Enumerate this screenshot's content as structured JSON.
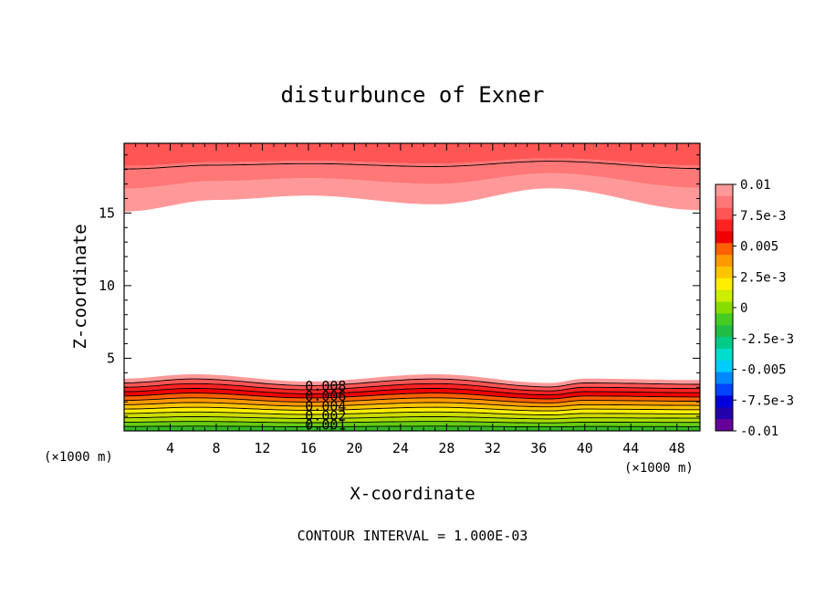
{
  "chart_data": {
    "type": "contour",
    "title": "disturbunce of Exner",
    "xlabel": "X-coordinate",
    "ylabel": "Z-coordinate",
    "x_unit": "(×1000 m)",
    "y_unit": "(×1000 m)",
    "xlim": [
      0,
      50
    ],
    "ylim": [
      0,
      19.8
    ],
    "x_ticks": [
      "4",
      "8",
      "12",
      "16",
      "20",
      "24",
      "28",
      "32",
      "36",
      "40",
      "44",
      "48"
    ],
    "x_tick_values": [
      4,
      8,
      12,
      16,
      20,
      24,
      28,
      32,
      36,
      40,
      44,
      48
    ],
    "y_ticks": [
      "5",
      "10",
      "15"
    ],
    "y_tick_values": [
      5,
      10,
      15
    ],
    "footer": "CONTOUR INTERVAL = 1.000E-03",
    "contour_interval": 0.001,
    "contour_labels": [
      "0.008",
      "0.006",
      "0.004",
      "0.002",
      "0.001"
    ],
    "contour_label_values": [
      0.008,
      0.006,
      0.004,
      0.002,
      0.001
    ],
    "bottom_layer": {
      "description_values": [
        0.001,
        0.002,
        0.003,
        0.004,
        0.005,
        0.006,
        0.007,
        0.008,
        0.009
      ],
      "top_height_profile_x": [
        0,
        6,
        16,
        27,
        37,
        40,
        50
      ],
      "top_height_profile_z": [
        3.6,
        3.9,
        3.4,
        3.9,
        3.3,
        3.6,
        3.5
      ]
    },
    "top_layer": {
      "values": [
        0.01,
        0.009,
        0.008
      ],
      "bottom_height_profile_x": [
        0,
        8,
        16,
        27,
        37,
        50
      ],
      "bottom_height_profile_z": [
        15.1,
        15.9,
        16.2,
        15.6,
        16.7,
        15.2
      ]
    },
    "colorbar": {
      "labels": [
        "0.01",
        "7.5e-3",
        "0.005",
        "2.5e-3",
        "0",
        "-2.5e-3",
        "-0.005",
        "-7.5e-3",
        "-0.01"
      ],
      "values": [
        0.01,
        0.0075,
        0.005,
        0.0025,
        0,
        -0.0025,
        -0.005,
        -0.0075,
        -0.01
      ],
      "colors": [
        "#ff9999",
        "#ff7777",
        "#ff5555",
        "#ff2222",
        "#f00000",
        "#ff6000",
        "#ff9900",
        "#ffc400",
        "#ffee00",
        "#ccee00",
        "#88dd00",
        "#44cc22",
        "#22bb44",
        "#00cc88",
        "#00ddcc",
        "#00ccff",
        "#0088ff",
        "#0044ff",
        "#0000dd",
        "#2200aa",
        "#660099"
      ]
    }
  }
}
